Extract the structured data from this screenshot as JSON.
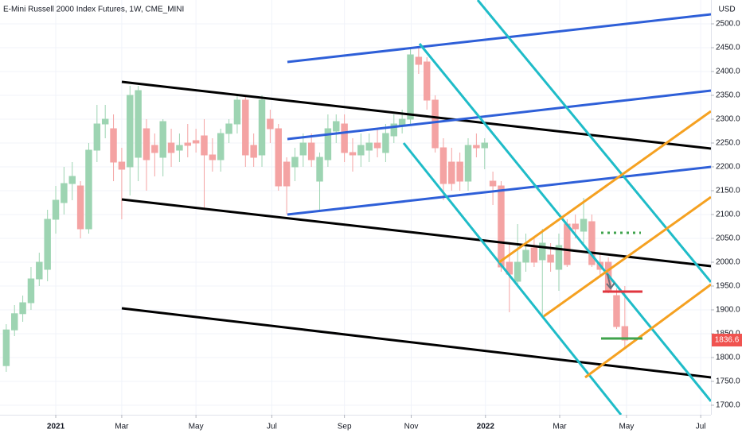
{
  "chart_data": {
    "type": "candlestick",
    "title": "E-Mini Russell 2000 Index Futures, 1W, CME_MINI",
    "y_unit": "USD",
    "up_color": "#9dd4b2",
    "down_color": "#f4a3a3",
    "x": [
      -6,
      -5,
      -4,
      -3,
      -2,
      -1,
      0,
      1,
      2,
      3,
      4,
      5,
      6,
      7,
      8,
      9,
      10,
      11,
      12,
      13,
      14,
      15,
      16,
      17,
      18,
      19,
      20,
      21,
      22,
      23,
      24,
      25,
      26,
      27,
      28,
      29,
      30,
      31,
      32,
      33,
      34,
      35,
      36,
      37,
      38,
      39,
      40,
      41,
      42,
      43,
      44,
      45,
      46,
      47,
      48,
      49,
      50,
      51,
      52,
      53,
      54,
      55,
      56,
      57,
      58,
      59,
      60,
      61,
      62,
      63,
      64,
      65,
      66,
      67,
      68,
      69
    ],
    "open": [
      1783,
      1858,
      1892,
      1915,
      1965,
      1985,
      2090,
      2125,
      2165,
      2160,
      2070,
      2235,
      2290,
      2280,
      2210,
      2200,
      2220,
      2280,
      2245,
      2220,
      2250,
      2235,
      2250,
      2255,
      2265,
      2225,
      2215,
      2270,
      2290,
      2340,
      2245,
      2225,
      2300,
      2280,
      2210,
      2200,
      2225,
      2250,
      2170,
      2215,
      2275,
      2290,
      2230,
      2225,
      2235,
      2250,
      2230,
      2265,
      2285,
      2300,
      2430,
      2420,
      2340,
      2240,
      2210,
      2210,
      2170,
      2245,
      2240,
      2170,
      2160,
      2000,
      1960,
      2000,
      2030,
      2005,
      2015,
      1985,
      2080,
      2080,
      2065,
      2085,
      2000,
      2000,
      1930,
      1865
    ],
    "high": [
      1870,
      1910,
      1930,
      1990,
      2020,
      2110,
      2160,
      2200,
      2210,
      2170,
      2250,
      2330,
      2330,
      2310,
      2240,
      2370,
      2370,
      2300,
      2270,
      2300,
      2280,
      2270,
      2290,
      2280,
      2300,
      2260,
      2280,
      2300,
      2350,
      2350,
      2270,
      2350,
      2320,
      2290,
      2220,
      2240,
      2270,
      2270,
      2230,
      2310,
      2310,
      2310,
      2260,
      2270,
      2270,
      2280,
      2290,
      2310,
      2320,
      2450,
      2450,
      2430,
      2350,
      2260,
      2240,
      2230,
      2260,
      2270,
      2260,
      2190,
      2170,
      2040,
      2080,
      2060,
      2050,
      2070,
      2040,
      2060,
      2090,
      2100,
      2135,
      2100,
      2020,
      2010,
      1945,
      1950
    ],
    "low": [
      1770,
      1845,
      1875,
      1900,
      1950,
      1960,
      2060,
      2100,
      2130,
      2050,
      2060,
      2210,
      2260,
      2170,
      2090,
      2140,
      2170,
      2150,
      2180,
      2180,
      2200,
      2210,
      2220,
      2230,
      2110,
      2190,
      2190,
      2250,
      2270,
      2200,
      2200,
      2200,
      2250,
      2150,
      2100,
      2170,
      2200,
      2200,
      2105,
      2200,
      2250,
      2210,
      2190,
      2200,
      2210,
      2220,
      2210,
      2250,
      2270,
      2290,
      2395,
      2320,
      2230,
      2130,
      2150,
      2150,
      2150,
      2220,
      2195,
      2120,
      1980,
      1895,
      1950,
      1980,
      1990,
      1890,
      1980,
      1940,
      1990,
      2050,
      2040,
      1990,
      1970,
      1935,
      1860,
      1820
    ],
    "close": [
      1858,
      1892,
      1915,
      1965,
      2000,
      2090,
      2130,
      2165,
      2180,
      2070,
      2235,
      2290,
      2300,
      2210,
      2195,
      2350,
      2360,
      2215,
      2230,
      2295,
      2230,
      2245,
      2245,
      2250,
      2225,
      2215,
      2270,
      2290,
      2340,
      2225,
      2220,
      2340,
      2280,
      2160,
      2160,
      2220,
      2250,
      2215,
      2220,
      2280,
      2295,
      2230,
      2225,
      2245,
      2250,
      2240,
      2270,
      2290,
      2300,
      2435,
      2415,
      2340,
      2240,
      2165,
      2165,
      2170,
      2245,
      2240,
      2250,
      2160,
      1990,
      1975,
      2000,
      2025,
      2000,
      2040,
      2000,
      2035,
      1995,
      2070,
      2090,
      1995,
      1985,
      1940,
      1865,
      1836.6
    ],
    "xlim": [
      -6.76,
      79.44
    ],
    "xticks": [
      {
        "value": 0,
        "label": "2021"
      },
      {
        "value": 8,
        "label": "Mar"
      },
      {
        "value": 17,
        "label": "May"
      },
      {
        "value": 26.2,
        "label": "Jul"
      },
      {
        "value": 35,
        "label": "Sep"
      },
      {
        "value": 43.1,
        "label": "Nov"
      },
      {
        "value": 52.1,
        "label": "2022"
      },
      {
        "value": 61.1,
        "label": "Mar"
      },
      {
        "value": 69.2,
        "label": "May"
      },
      {
        "value": 78.2,
        "label": "Jul"
      }
    ],
    "ylim": [
      1680,
      2550
    ],
    "yticks": [
      {
        "value": 1700,
        "label": "1700.0"
      },
      {
        "value": 1750,
        "label": "1750.0"
      },
      {
        "value": 1800,
        "label": "1800.0"
      },
      {
        "value": 1850,
        "label": "1850.0"
      },
      {
        "value": 1900,
        "label": "1900.0"
      },
      {
        "value": 1950,
        "label": "1950.0"
      },
      {
        "value": 2000,
        "label": "2000.0"
      },
      {
        "value": 2050,
        "label": "2050.0"
      },
      {
        "value": 2100,
        "label": "2100.0"
      },
      {
        "value": 2150,
        "label": "2150.0"
      },
      {
        "value": 2200,
        "label": "2200.0"
      },
      {
        "value": 2250,
        "label": "2250.0"
      },
      {
        "value": 2300,
        "label": "2300.0"
      },
      {
        "value": 2350,
        "label": "2350.0"
      },
      {
        "value": 2400,
        "label": "2400.0"
      },
      {
        "value": 2450,
        "label": "2450.0"
      },
      {
        "value": 2500,
        "label": "2500.0"
      }
    ],
    "grid": true
  }
}
